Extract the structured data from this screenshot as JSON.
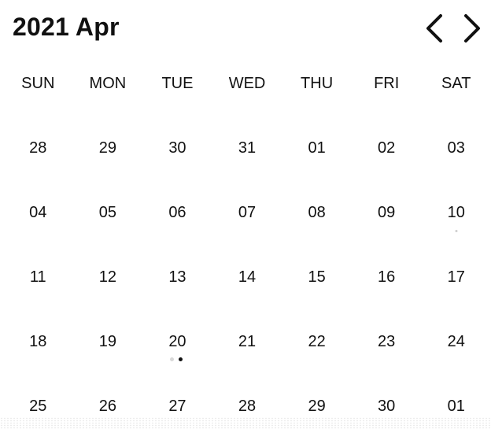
{
  "header": {
    "title": "2021 Apr",
    "prev_icon": "chevron-left-icon",
    "next_icon": "chevron-right-icon"
  },
  "weekdays": [
    "SUN",
    "MON",
    "TUE",
    "WED",
    "THU",
    "FRI",
    "SAT"
  ],
  "weeks": [
    [
      "28",
      "29",
      "30",
      "31",
      "01",
      "02",
      "03"
    ],
    [
      "04",
      "05",
      "06",
      "07",
      "08",
      "09",
      "10"
    ],
    [
      "11",
      "12",
      "13",
      "14",
      "15",
      "16",
      "17"
    ],
    [
      "18",
      "19",
      "20",
      "21",
      "22",
      "23",
      "24"
    ],
    [
      "25",
      "26",
      "27",
      "28",
      "29",
      "30",
      "01"
    ]
  ],
  "event_days": [
    {
      "week": 1,
      "day": 6,
      "style": "faint"
    },
    {
      "week": 3,
      "day": 2,
      "style": "dot"
    }
  ]
}
